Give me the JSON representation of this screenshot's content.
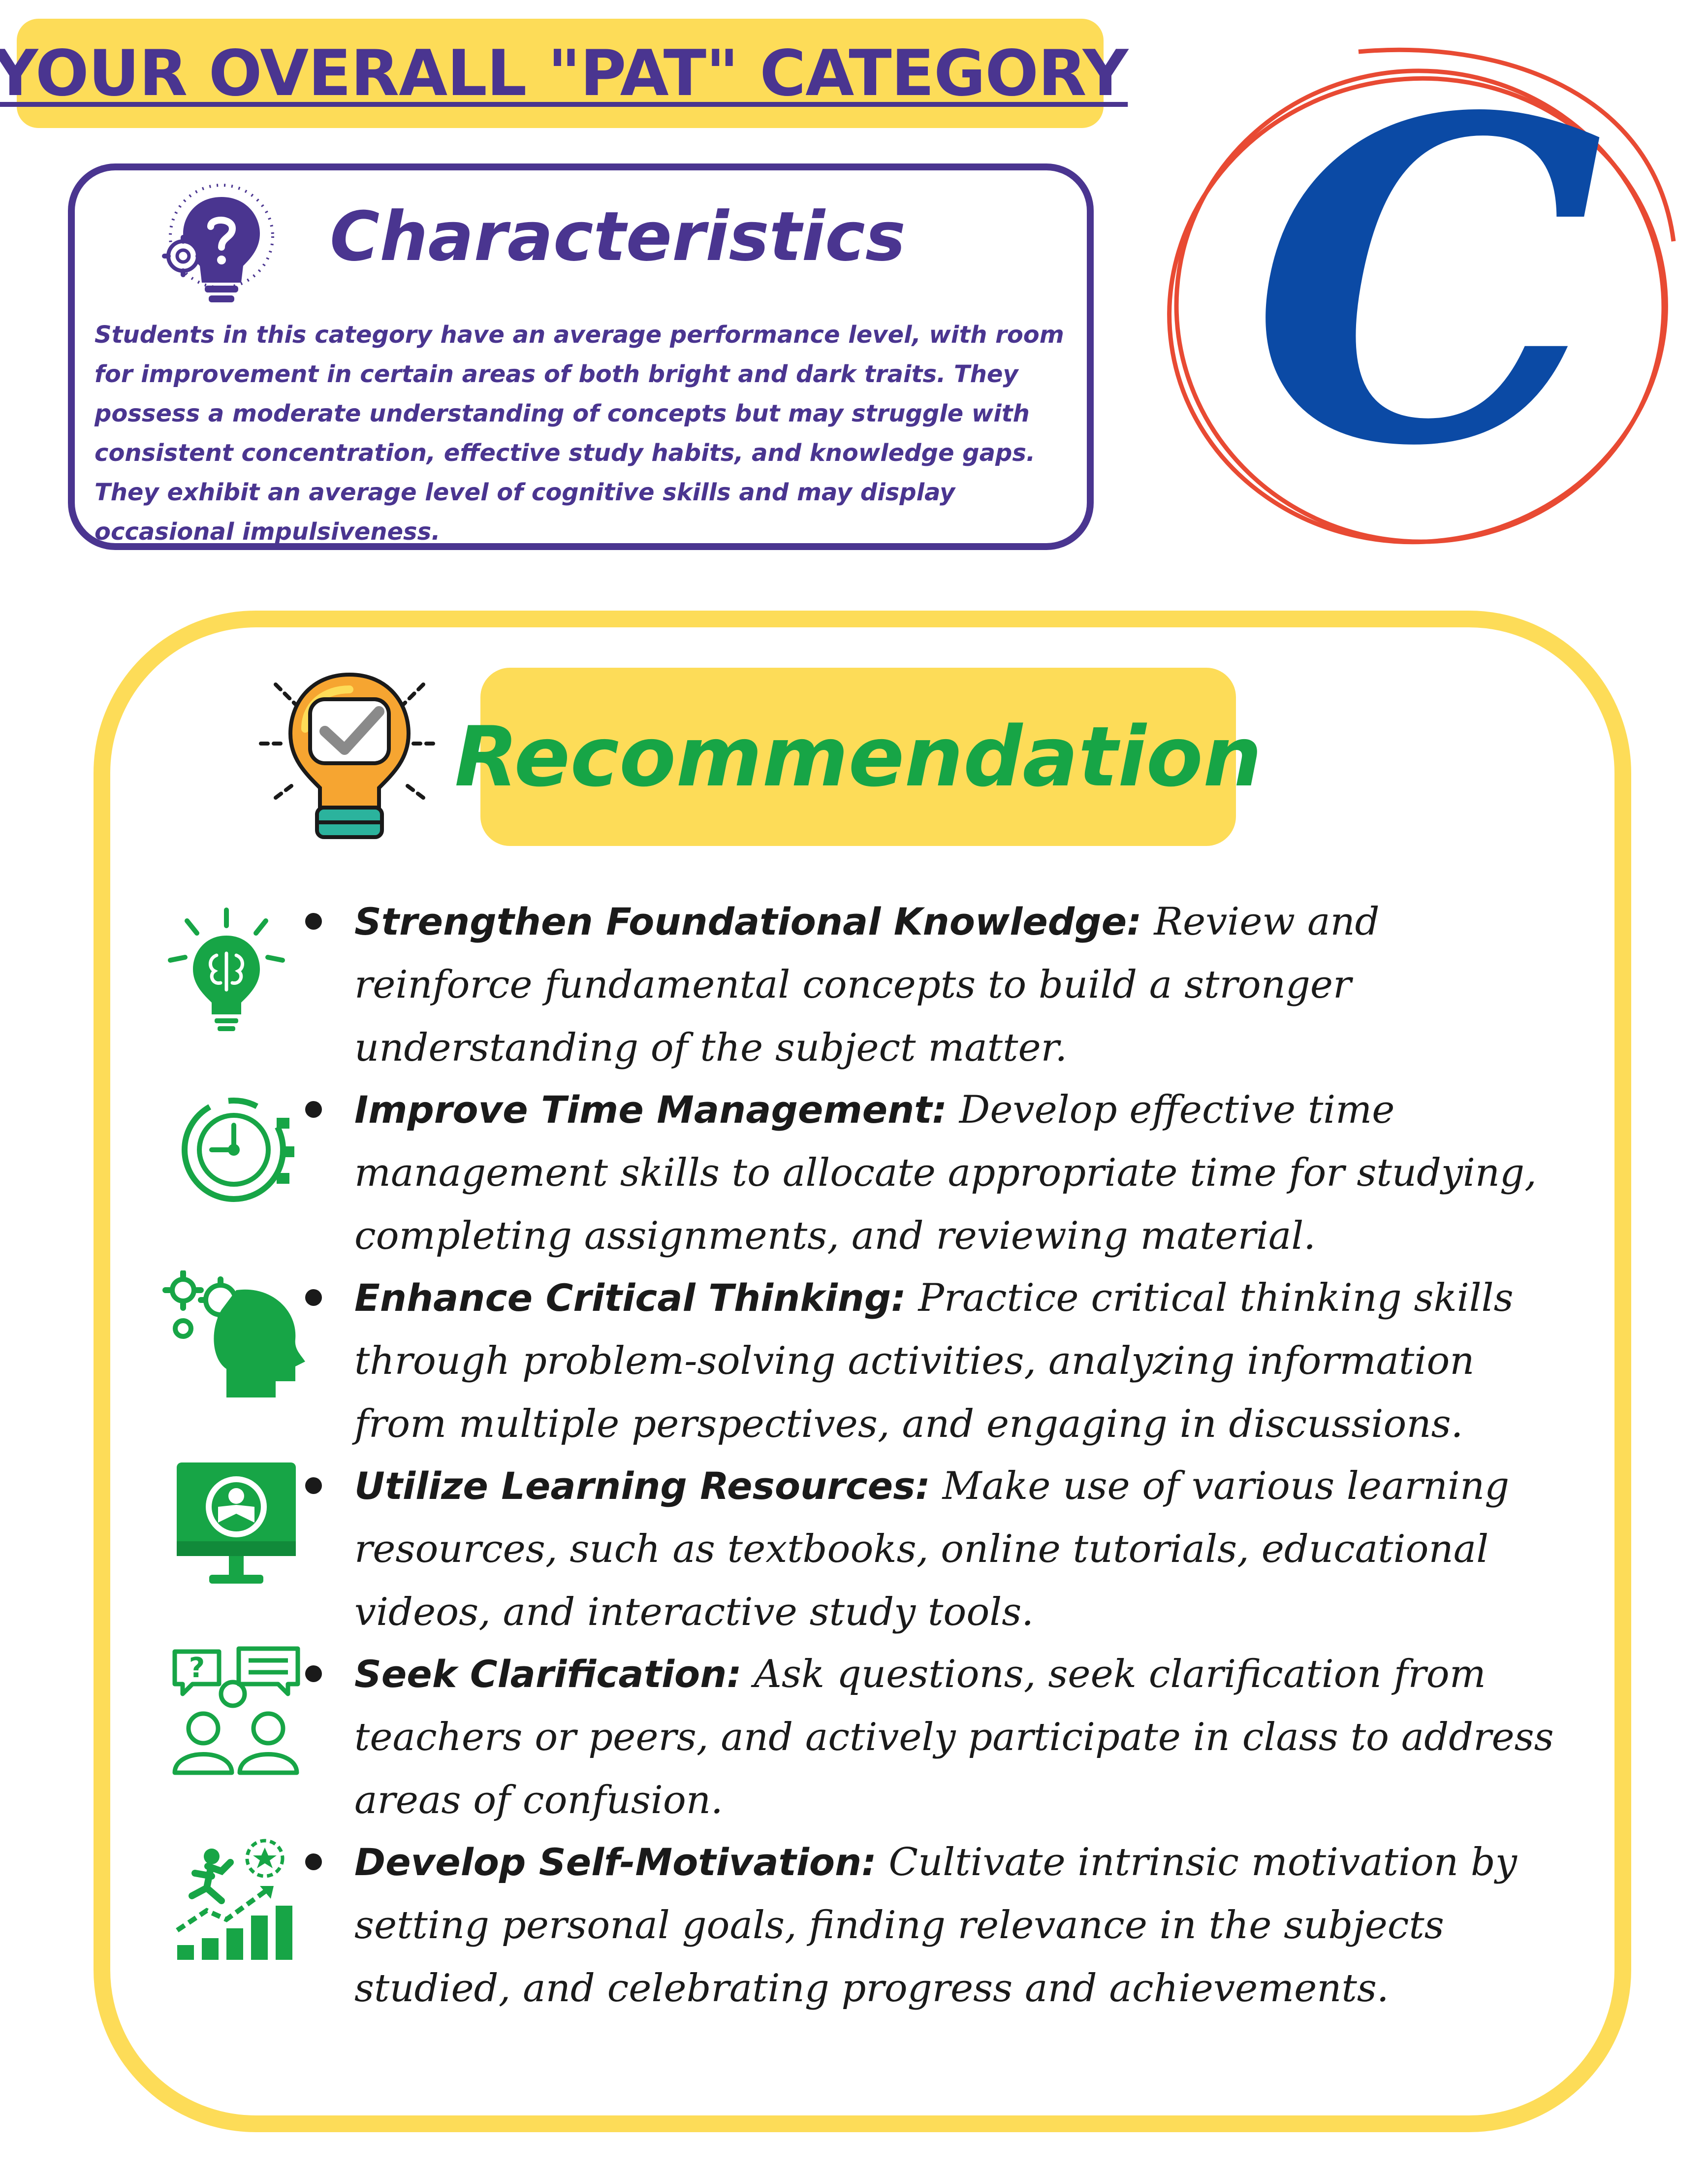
{
  "header": {
    "title": "YOUR OVERALL \"PAT\" CATEGORY"
  },
  "grade": {
    "letter": "C",
    "letter_color": "#0b4aa5",
    "ring_color": "#e84a33"
  },
  "characteristics": {
    "title": "Characteristics",
    "icon": "bulb-question-icon",
    "body": "Students in this category have an average performance level, with room for improvement in certain areas of both bright and dark traits. They possess a moderate understanding of concepts but may struggle with consistent concentration, effective study habits, and knowledge gaps. They exhibit an average level of cognitive skills and may display occasional impulsiveness."
  },
  "recommendation": {
    "title": "Recommendation",
    "icon": "bulb-check-icon",
    "items": [
      {
        "heading": "Strengthen Foundational Knowledge:",
        "text": " Review and reinforce fundamental concepts to build a stronger understanding of the subject matter.",
        "icon": "brain-bulb-icon"
      },
      {
        "heading": "Improve Time Management:",
        "text": " Develop effective time management skills to allocate appropriate time for studying, completing assignments, and reviewing material.",
        "icon": "clock-gear-icon"
      },
      {
        "heading": "Enhance Critical Thinking:",
        "text": " Practice critical thinking skills through problem-solving activities, analyzing information from multiple perspectives, and engaging in discussions.",
        "icon": "head-gears-icon"
      },
      {
        "heading": " Utilize Learning Resources:",
        "text": " Make use of various learning resources, such as textbooks, online tutorials, educational videos, and interactive study tools.",
        "icon": "monitor-reader-icon"
      },
      {
        "heading": "Seek Clarification:",
        "text": " Ask questions, seek clarification from teachers or peers, and actively participate in class to address areas of confusion.",
        "icon": "people-discussion-icon"
      },
      {
        "heading": "Develop Self-Motivation:",
        "text": " Cultivate intrinsic motivation by setting personal goals, finding relevance in the subjects studied, and celebrating progress and achievements.",
        "icon": "growth-climber-icon"
      }
    ]
  },
  "colors": {
    "purple": "#4a3590",
    "yellow": "#fddc58",
    "green": "#17a546"
  }
}
